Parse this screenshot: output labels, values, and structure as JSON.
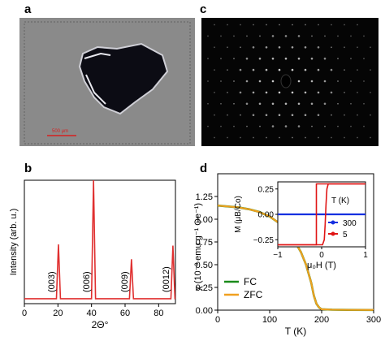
{
  "panel_a": {
    "label": "a",
    "scale_bar_label": "500 μm",
    "colors": {
      "background": "#8c8c8c",
      "crystal": "#0b0b12",
      "scale": "#d62020"
    }
  },
  "panel_c": {
    "label": "c",
    "colors": {
      "background": "#050505",
      "spot": "#e6e6e6"
    }
  },
  "chart_data": [
    {
      "panel": "b",
      "type": "line",
      "xlabel": "2Θ°",
      "ylabel": "Intensity (arb. u.)",
      "xlim": [
        0,
        90
      ],
      "xticks": [
        0,
        20,
        40,
        60,
        80
      ],
      "grid": false,
      "peaks": [
        {
          "label": "(003)",
          "x": 20.3,
          "y": 0.48
        },
        {
          "label": "(006)",
          "x": 41.2,
          "y": 1.0
        },
        {
          "label": "(009)",
          "x": 63.8,
          "y": 0.36
        },
        {
          "label": "(0012)",
          "x": 88.5,
          "y": 0.47
        }
      ],
      "baseline": 0.04,
      "series": [
        {
          "color": "#e03030"
        }
      ]
    },
    {
      "panel": "d",
      "type": "line",
      "xlabel": "T (K)",
      "ylabel": "χ (10⁻³ emu g⁻¹ Oe⁻¹)",
      "xlim": [
        0,
        300
      ],
      "ylim": [
        0,
        1.5
      ],
      "xticks": [
        0,
        100,
        200,
        300
      ],
      "yticks": [
        0.0,
        0.25,
        0.5,
        0.75,
        1.0,
        1.25
      ],
      "ytick_labels": [
        "0.00",
        "0.25",
        "0.50",
        "0.75",
        "1.00",
        "1.25"
      ],
      "legend_position": "lower-left",
      "series": [
        {
          "name": "FC",
          "color": "#1a8a1a"
        },
        {
          "name": "ZFC",
          "color": "#f0a020",
          "x": [
            0,
            20,
            40,
            60,
            80,
            100,
            120,
            140,
            160,
            170,
            180,
            185,
            190,
            195,
            200,
            220,
            250,
            300
          ],
          "y": [
            1.15,
            1.14,
            1.13,
            1.11,
            1.08,
            1.03,
            0.95,
            0.84,
            0.64,
            0.5,
            0.3,
            0.16,
            0.07,
            0.03,
            0.01,
            0.005,
            0.003,
            0.002
          ]
        }
      ]
    },
    {
      "panel": "d-inset",
      "type": "line",
      "xlabel": "μ₀H (T)",
      "ylabel": "M (μB/Co)",
      "xlim": [
        -1,
        1
      ],
      "ylim": [
        -0.32,
        0.32
      ],
      "xticks": [
        -1,
        0,
        1
      ],
      "yticks": [
        -0.25,
        0.0,
        0.25
      ],
      "ytick_labels": [
        "−0.25",
        "0.00",
        "0.25"
      ],
      "legend_title": "T (K)",
      "legend_position": "lower-right",
      "series": [
        {
          "name": "300",
          "color": "#1530e0",
          "x": [
            -1,
            1
          ],
          "y": [
            0,
            0
          ]
        },
        {
          "name": "5",
          "color": "#e01515",
          "sweep_up_x": [
            -1,
            0.02,
            0.06,
            0.08,
            0.1,
            0.12,
            0.15,
            1
          ],
          "sweep_up_y": [
            -0.3,
            -0.3,
            -0.25,
            -0.1,
            0.1,
            0.25,
            0.3,
            0.3
          ],
          "sweep_down_x": [
            1,
            -0.12,
            -0.12,
            -1
          ],
          "sweep_down_y": [
            0.3,
            0.3,
            -0.3,
            -0.3
          ]
        }
      ]
    }
  ],
  "panel_b": {
    "label": "b"
  },
  "panel_d": {
    "label": "d"
  }
}
